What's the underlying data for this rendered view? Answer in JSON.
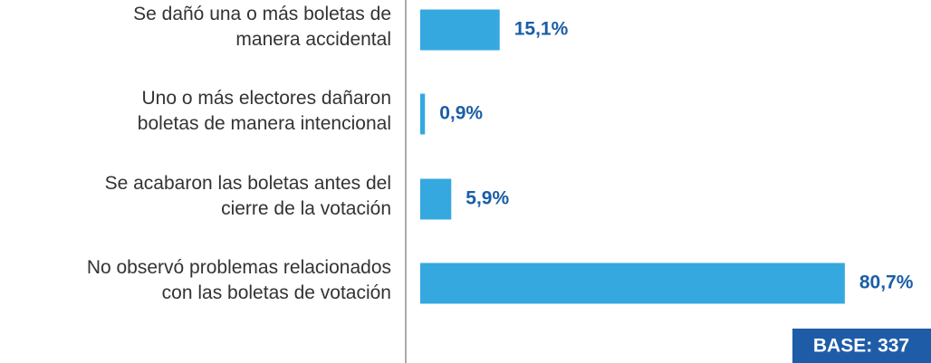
{
  "chart_data": {
    "type": "bar",
    "orientation": "horizontal",
    "categories": [
      "Se dañó una o más boletas de\nmanera accidental",
      "Uno o más electores dañaron\nboletas de manera intencional",
      "Se acabaron las boletas antes del\ncierre de la votación",
      "No observó problemas relacionados\ncon las boletas de votación"
    ],
    "values": [
      15.1,
      0.9,
      5.9,
      80.7
    ],
    "value_labels": [
      "15,1%",
      "0,9%",
      "5,9%",
      "80,7%"
    ],
    "color": "#35a8e0",
    "label_color": "#1a5ea6",
    "annotation": "BASE: 337"
  }
}
